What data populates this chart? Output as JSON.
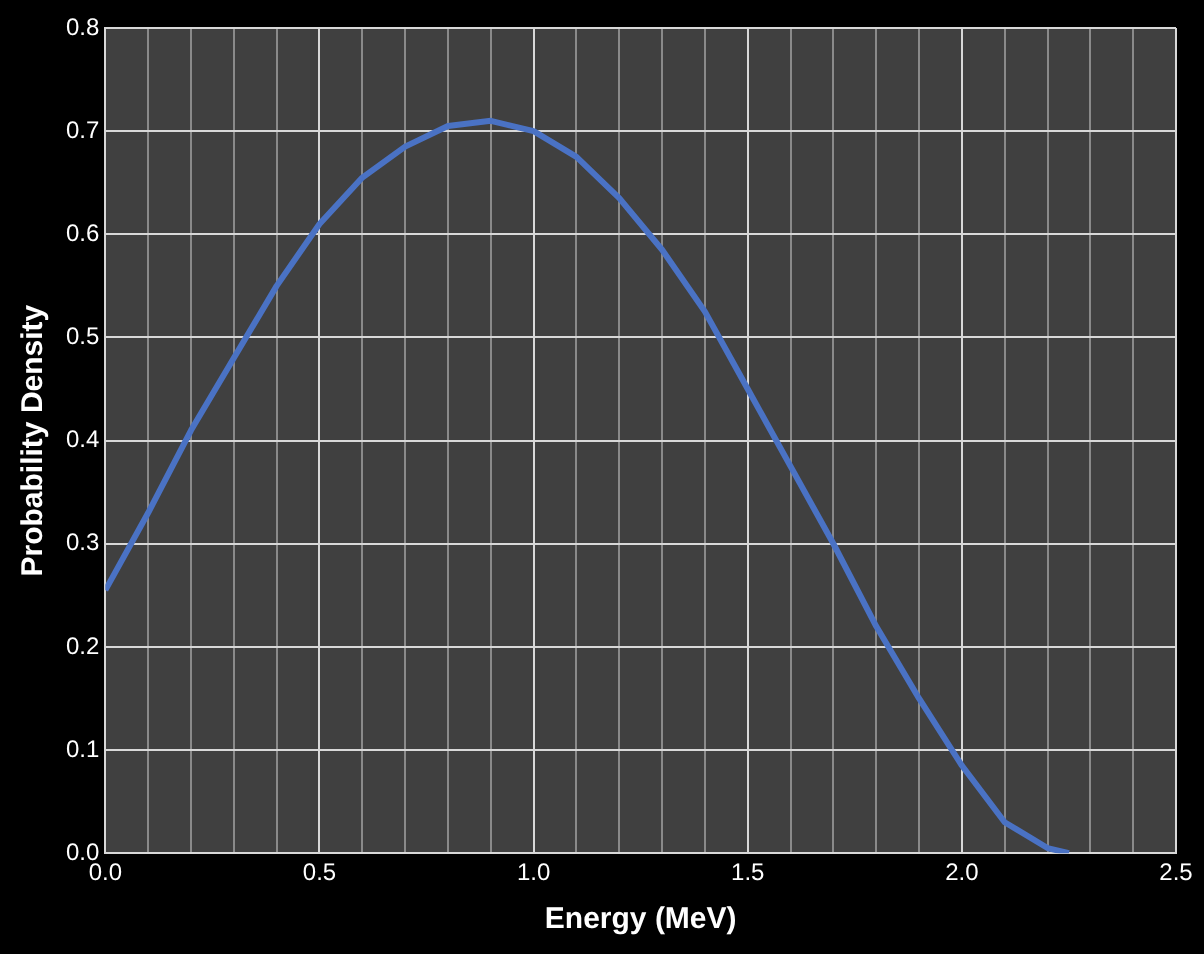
{
  "chart_data": {
    "type": "line",
    "xlabel": "Energy (MeV)",
    "ylabel": "Probability Density",
    "x": [
      0,
      0.1,
      0.2,
      0.3,
      0.4,
      0.5,
      0.6,
      0.7,
      0.8,
      0.9,
      1.0,
      1.1,
      1.2,
      1.3,
      1.4,
      1.5,
      1.6,
      1.7,
      1.8,
      1.9,
      2.0,
      2.1,
      2.2,
      2.25
    ],
    "series": [
      {
        "color": "#4a72c4",
        "values": [
          0.255,
          0.33,
          0.41,
          0.48,
          0.55,
          0.61,
          0.655,
          0.685,
          0.705,
          0.71,
          0.7,
          0.675,
          0.635,
          0.585,
          0.525,
          0.45,
          0.375,
          0.3,
          0.22,
          0.15,
          0.085,
          0.03,
          0.005,
          0
        ]
      }
    ],
    "xlim": [
      0,
      2.5
    ],
    "xticks": [
      {
        "value": 0,
        "label": "0.0"
      },
      {
        "value": 0.1,
        "label": null
      },
      {
        "value": 0.2,
        "label": null
      },
      {
        "value": 0.3,
        "label": null
      },
      {
        "value": 0.4,
        "label": null
      },
      {
        "value": 0.5,
        "label": "0.5"
      },
      {
        "value": 0.6,
        "label": null
      },
      {
        "value": 0.7,
        "label": null
      },
      {
        "value": 0.8,
        "label": null
      },
      {
        "value": 0.9,
        "label": null
      },
      {
        "value": 1,
        "label": "1.0"
      },
      {
        "value": 1.1,
        "label": null
      },
      {
        "value": 1.2,
        "label": null
      },
      {
        "value": 1.3,
        "label": null
      },
      {
        "value": 1.4,
        "label": null
      },
      {
        "value": 1.5,
        "label": "1.5"
      },
      {
        "value": 1.6,
        "label": null
      },
      {
        "value": 1.7,
        "label": null
      },
      {
        "value": 1.8,
        "label": null
      },
      {
        "value": 1.9,
        "label": null
      },
      {
        "value": 2,
        "label": "2.0"
      },
      {
        "value": 2.1,
        "label": null
      },
      {
        "value": 2.2,
        "label": null
      },
      {
        "value": 2.3,
        "label": null
      },
      {
        "value": 2.4,
        "label": null
      },
      {
        "value": 2.5,
        "label": "2.5"
      }
    ],
    "ylim": [
      0,
      0.8
    ],
    "yticks": [
      {
        "value": 0,
        "label": "0.0"
      },
      {
        "value": 0.1,
        "label": "0.1"
      },
      {
        "value": 0.2,
        "label": "0.2"
      },
      {
        "value": 0.3,
        "label": "0.3"
      },
      {
        "value": 0.4,
        "label": "0.4"
      },
      {
        "value": 0.5,
        "label": "0.5"
      },
      {
        "value": 0.6,
        "label": "0.6"
      },
      {
        "value": 0.7,
        "label": "0.7"
      },
      {
        "value": 0.8,
        "label": "0.8"
      }
    ],
    "grid": true,
    "legend": false,
    "marker": "none",
    "line_style": "solid"
  }
}
